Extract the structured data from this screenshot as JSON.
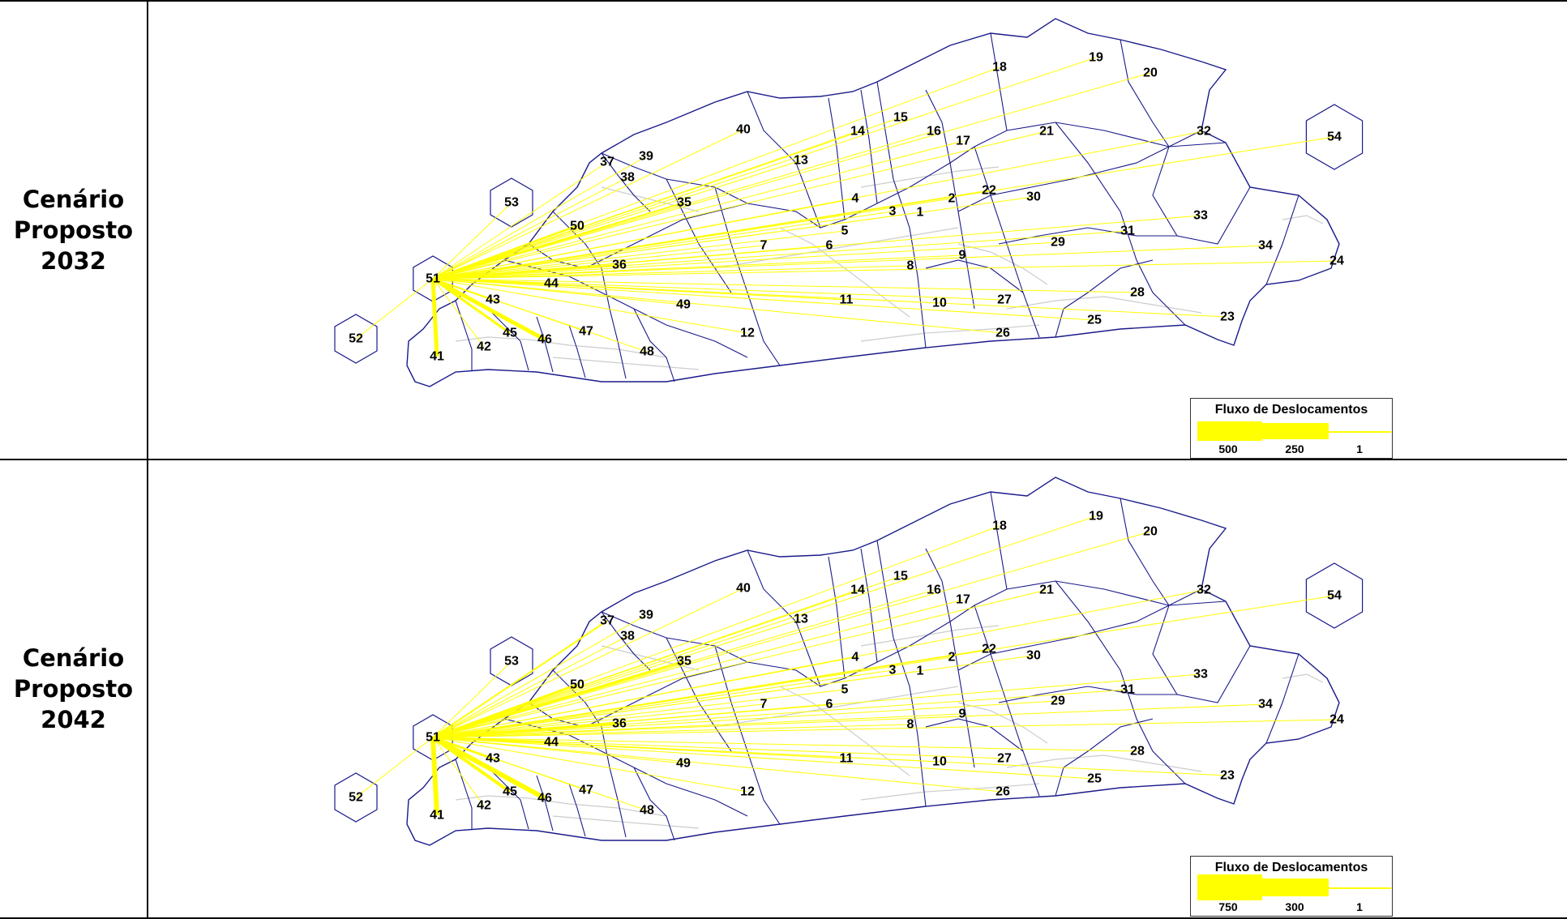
{
  "rows": [
    {
      "label_lines": [
        "Cenário",
        "Proposto",
        "2032"
      ],
      "legend": {
        "title": "Fluxo de Deslocamentos",
        "values": [
          "500",
          "250",
          "1"
        ]
      }
    },
    {
      "label_lines": [
        "Cenário",
        "Proposto",
        "2042"
      ],
      "legend": {
        "title": "Fluxo de Deslocamentos",
        "values": [
          "750",
          "300",
          "1"
        ]
      }
    }
  ],
  "zones": [
    "1",
    "2",
    "3",
    "4",
    "5",
    "6",
    "7",
    "8",
    "9",
    "10",
    "11",
    "12",
    "13",
    "14",
    "15",
    "16",
    "17",
    "18",
    "19",
    "20",
    "21",
    "22",
    "23",
    "24",
    "25",
    "26",
    "27",
    "28",
    "29",
    "30",
    "31",
    "32",
    "33",
    "34",
    "35",
    "36",
    "37",
    "38",
    "39",
    "40",
    "41",
    "42",
    "43",
    "44",
    "45",
    "46",
    "47",
    "48",
    "49",
    "50",
    "51",
    "52",
    "53",
    "54"
  ],
  "flow_origin_zone": "51",
  "colors": {
    "flow": "#ffff00",
    "zone_border": "#1a1a8c",
    "street": "#cccccc",
    "table_border": "#000000"
  }
}
